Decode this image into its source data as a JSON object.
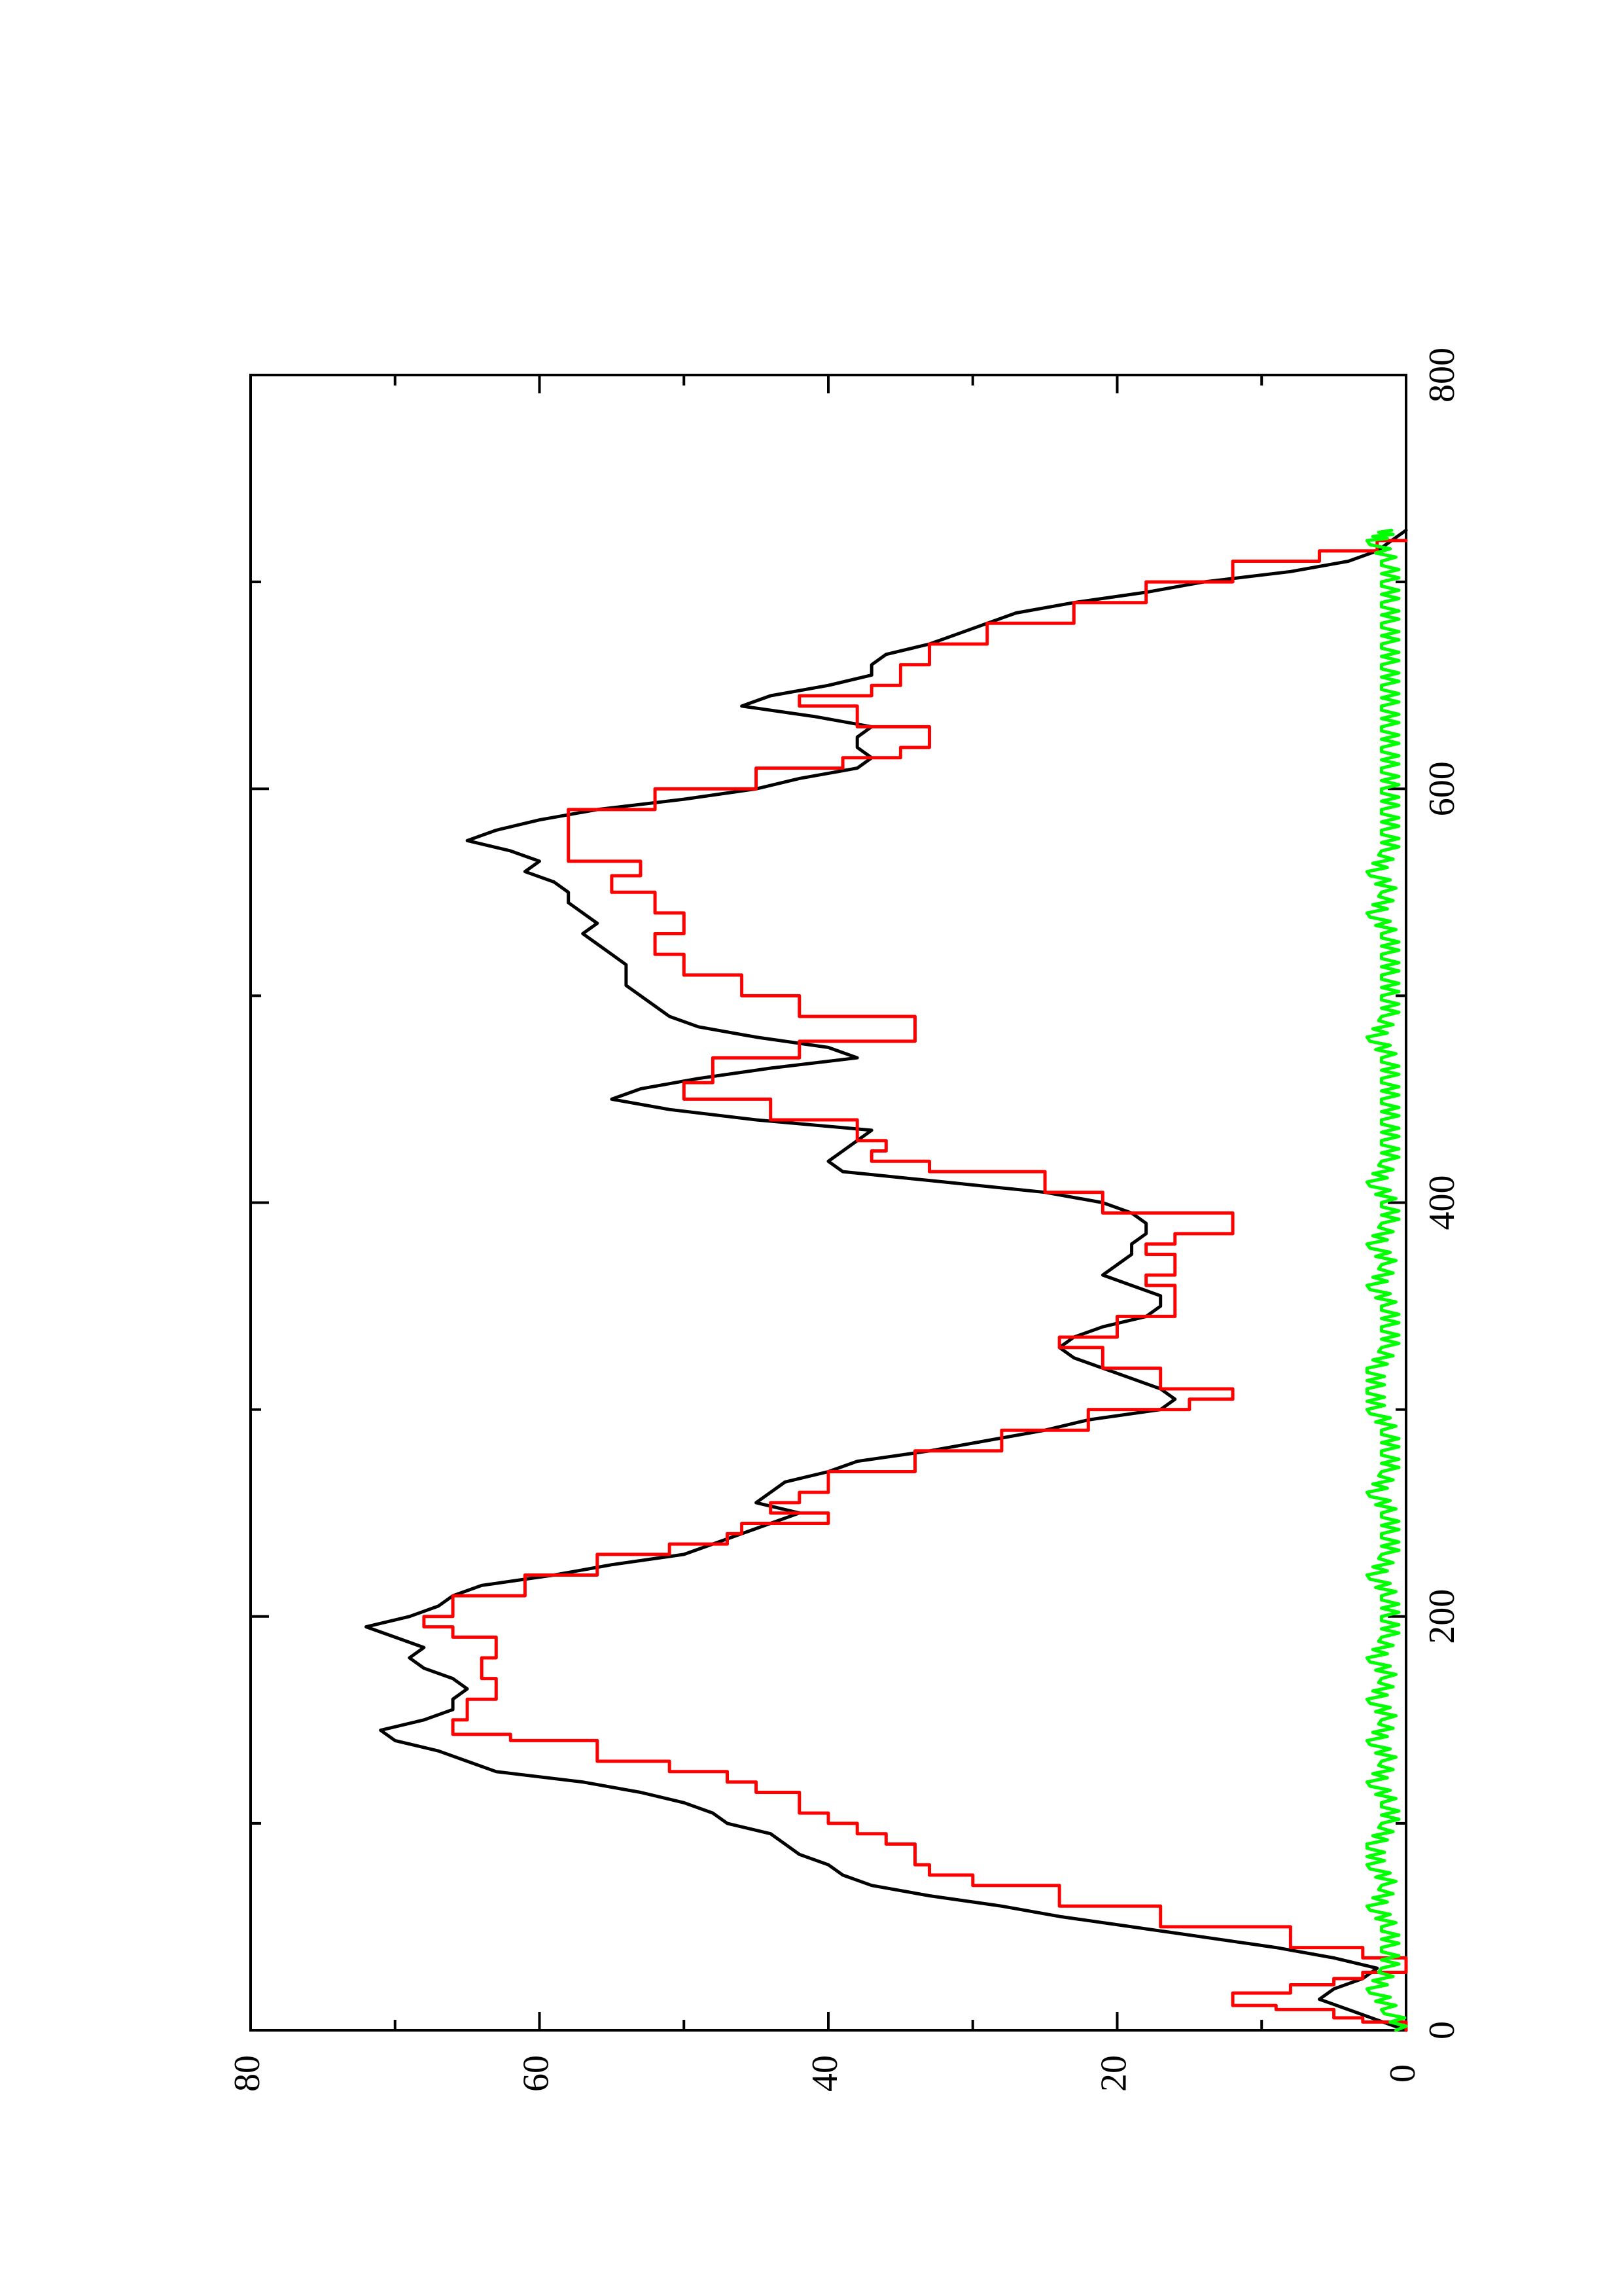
{
  "chart_data": {
    "type": "line",
    "orientation": "rotated 90° counter-clockwise (x runs bottom→top, y runs left→right)",
    "title": "",
    "xlabel": "",
    "ylabel": "",
    "xlim": [
      0,
      800
    ],
    "ylim": [
      0,
      80
    ],
    "x_ticks": [
      0,
      200,
      400,
      600,
      800
    ],
    "x_tick_labels": [
      "0",
      "200",
      "400",
      "600",
      "800"
    ],
    "x_minor_ticks": [
      100,
      300,
      500,
      700
    ],
    "y_ticks": [
      0,
      20,
      40,
      60,
      80
    ],
    "y_tick_labels": [
      "0",
      "20",
      "40",
      "60",
      "80"
    ],
    "y_minor_ticks": [
      10,
      30,
      50,
      70
    ],
    "grid": false,
    "legend": "none",
    "series": [
      {
        "color": "#000000",
        "style": "smooth",
        "x": [
          0,
          5,
          10,
          15,
          20,
          25,
          30,
          35,
          40,
          45,
          50,
          55,
          60,
          65,
          70,
          75,
          80,
          85,
          90,
          95,
          100,
          105,
          110,
          115,
          120,
          125,
          130,
          135,
          140,
          145,
          150,
          155,
          160,
          165,
          170,
          175,
          180,
          185,
          190,
          195,
          200,
          205,
          210,
          215,
          220,
          225,
          230,
          235,
          240,
          245,
          250,
          255,
          260,
          265,
          270,
          275,
          280,
          285,
          290,
          295,
          300,
          305,
          310,
          315,
          320,
          325,
          330,
          335,
          340,
          345,
          350,
          355,
          360,
          365,
          370,
          375,
          380,
          385,
          390,
          395,
          400,
          405,
          410,
          415,
          420,
          425,
          430,
          435,
          440,
          445,
          450,
          455,
          460,
          465,
          470,
          475,
          480,
          485,
          490,
          495,
          500,
          505,
          510,
          515,
          520,
          525,
          530,
          535,
          540,
          545,
          550,
          555,
          560,
          565,
          570,
          575,
          580,
          585,
          590,
          595,
          600,
          605,
          610,
          615,
          620,
          625,
          630,
          635,
          640,
          645,
          650,
          655,
          660,
          665,
          670,
          675,
          680,
          685,
          690,
          695,
          700,
          705,
          710,
          715,
          720,
          725
        ],
        "y": [
          0,
          2,
          4,
          6,
          5,
          3,
          2,
          5,
          9,
          14,
          19,
          24,
          28,
          33,
          37,
          39,
          40,
          42,
          43,
          44,
          47,
          48,
          50,
          53,
          57,
          63,
          65,
          67,
          70,
          71,
          68,
          66,
          66,
          65,
          66,
          68,
          69,
          68,
          70,
          72,
          69,
          67,
          66,
          64,
          59,
          55,
          50,
          48,
          46,
          44,
          42,
          45,
          44,
          43,
          40,
          38,
          33,
          29,
          25,
          22,
          17,
          16,
          17,
          19,
          21,
          23,
          24,
          23,
          21,
          18,
          17,
          17,
          19,
          21,
          20,
          19,
          19,
          18,
          18,
          19,
          21,
          25,
          32,
          39,
          40,
          39,
          38,
          37,
          45,
          51,
          55,
          53,
          49,
          44,
          38,
          40,
          45,
          49,
          51,
          52,
          53,
          54,
          54,
          54,
          55,
          56,
          57,
          56,
          57,
          58,
          58,
          59,
          61,
          60,
          62,
          65,
          63,
          60,
          56,
          50,
          45,
          42,
          38,
          37,
          38,
          38,
          37,
          41,
          46,
          44,
          40,
          37,
          37,
          36,
          33,
          31,
          29,
          27,
          23,
          18,
          14,
          8,
          4,
          2,
          1,
          0
        ]
      },
      {
        "color": "#ff0000",
        "style": "step",
        "x": [
          0,
          4,
          6,
          10,
          12,
          18,
          22,
          25,
          28,
          35,
          40,
          50,
          60,
          70,
          75,
          80,
          90,
          95,
          100,
          105,
          115,
          120,
          125,
          130,
          140,
          143,
          150,
          160,
          170,
          180,
          190,
          195,
          200,
          210,
          220,
          230,
          235,
          240,
          245,
          250,
          255,
          260,
          270,
          280,
          290,
          300,
          305,
          310,
          320,
          330,
          335,
          345,
          355,
          360,
          365,
          375,
          380,
          385,
          395,
          405,
          415,
          420,
          425,
          430,
          440,
          450,
          458,
          470,
          478,
          490,
          500,
          510,
          520,
          530,
          540,
          550,
          558,
          565,
          575,
          580,
          590,
          600,
          610,
          615,
          620,
          630,
          640,
          645,
          650,
          660,
          670,
          680,
          690,
          700,
          710,
          715,
          720
        ],
        "y": [
          0,
          3,
          5,
          9,
          12,
          8,
          5,
          3,
          0,
          3,
          8,
          17,
          24,
          30,
          33,
          34,
          36,
          38,
          40,
          42,
          45,
          47,
          51,
          56,
          62,
          66,
          65,
          63,
          64,
          63,
          66,
          68,
          66,
          61,
          56,
          51,
          47,
          46,
          40,
          44,
          42,
          40,
          34,
          28,
          22,
          15,
          12,
          17,
          21,
          24,
          20,
          16,
          16,
          18,
          16,
          18,
          16,
          12,
          21,
          25,
          33,
          37,
          36,
          38,
          44,
          50,
          48,
          42,
          34,
          42,
          46,
          50,
          52,
          50,
          52,
          55,
          53,
          58,
          58,
          58,
          52,
          45,
          39,
          35,
          33,
          38,
          42,
          37,
          35,
          33,
          29,
          23,
          18,
          12,
          6,
          2,
          0
        ]
      },
      {
        "color": "#00ff00",
        "style": "noisy",
        "description_values_are_small_fluctuations_near_zero": true,
        "x": [
          0,
          10,
          20,
          30,
          40,
          50,
          60,
          70,
          80,
          90,
          100,
          110,
          120,
          130,
          140,
          150,
          160,
          170,
          180,
          190,
          200,
          210,
          220,
          230,
          240,
          250,
          260,
          270,
          280,
          290,
          300,
          310,
          320,
          330,
          340,
          350,
          360,
          370,
          380,
          390,
          400,
          410,
          420,
          430,
          440,
          450,
          460,
          470,
          480,
          490,
          500,
          510,
          520,
          530,
          540,
          550,
          560,
          570,
          580,
          590,
          600,
          610,
          620,
          630,
          640,
          650,
          660,
          670,
          680,
          690,
          700,
          710,
          720,
          725
        ],
        "y": [
          0,
          1,
          2,
          1,
          1,
          1,
          2,
          1,
          2,
          2,
          1,
          1,
          2,
          1,
          2,
          1,
          2,
          1,
          2,
          1,
          1,
          1,
          2,
          1,
          1,
          1,
          2,
          1,
          1,
          1,
          2,
          2,
          2,
          1,
          1,
          1,
          2,
          1,
          2,
          1,
          1,
          2,
          1,
          1,
          1,
          1,
          1,
          1,
          2,
          1,
          1,
          1,
          1,
          1,
          2,
          1,
          2,
          1,
          1,
          1,
          1,
          1,
          1,
          1,
          1,
          1,
          1,
          1,
          1,
          1,
          1,
          1,
          2,
          1
        ]
      }
    ]
  }
}
